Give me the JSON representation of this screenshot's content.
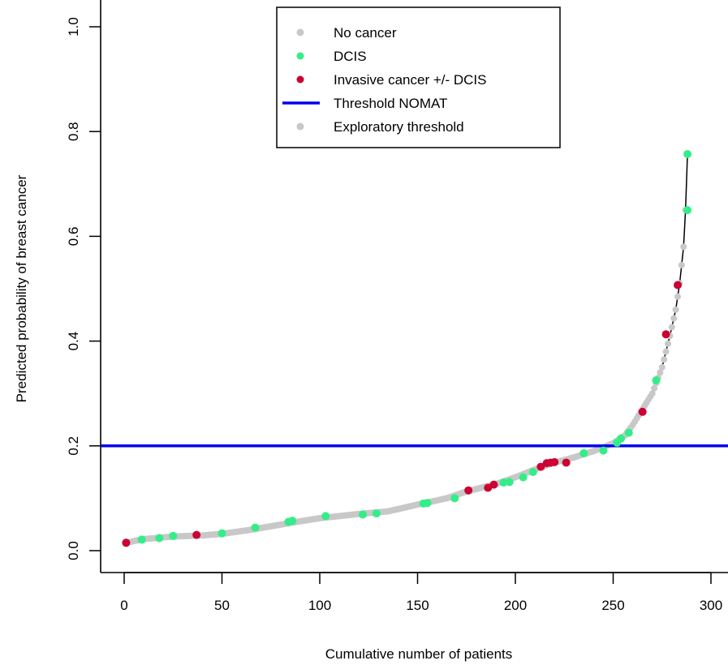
{
  "chart_data": {
    "type": "scatter",
    "xlabel": "Cumulative number of patients",
    "ylabel": "Predicted probability of breast cancer",
    "xlim": [
      -10,
      300
    ],
    "ylim": [
      0,
      1.0
    ],
    "x_ticks": [
      0,
      50,
      100,
      150,
      200,
      250,
      300
    ],
    "y_ticks": [
      0.0,
      0.2,
      0.4,
      0.6,
      0.8,
      1.0
    ],
    "x_tick_labels": [
      "0",
      "50",
      "100",
      "150",
      "200",
      "250",
      "300"
    ],
    "y_tick_labels": [
      "0.0",
      "0.2",
      "0.4",
      "0.6",
      "0.8",
      "1.0"
    ],
    "threshold_nomat": 0.2,
    "colors": {
      "no_cancer": "#c8c8c8",
      "dcis": "#33ee88",
      "invasive": "#cc0033",
      "threshold": "#0000ee",
      "curve": "#000000",
      "exploratory": "#c8c8c8"
    },
    "legend": {
      "position": "top-center",
      "entries": [
        {
          "label": "No cancer",
          "symbol": "point",
          "color": "#c8c8c8"
        },
        {
          "label": "DCIS",
          "symbol": "point",
          "color": "#33ee88"
        },
        {
          "label": "Invasive cancer +/- DCIS",
          "symbol": "point",
          "color": "#cc0033"
        },
        {
          "label": "Threshold NOMAT",
          "symbol": "line",
          "color": "#0000ee"
        },
        {
          "label": "Exploratory threshold",
          "symbol": "point",
          "color": "#c8c8c8"
        }
      ]
    },
    "curve_knots": [
      [
        1,
        0.015
      ],
      [
        10,
        0.022
      ],
      [
        25,
        0.027
      ],
      [
        40,
        0.029
      ],
      [
        50,
        0.032
      ],
      [
        65,
        0.04
      ],
      [
        85,
        0.053
      ],
      [
        100,
        0.062
      ],
      [
        120,
        0.07
      ],
      [
        135,
        0.075
      ],
      [
        150,
        0.088
      ],
      [
        165,
        0.1
      ],
      [
        175,
        0.113
      ],
      [
        190,
        0.127
      ],
      [
        200,
        0.14
      ],
      [
        210,
        0.155
      ],
      [
        220,
        0.168
      ],
      [
        230,
        0.178
      ],
      [
        240,
        0.19
      ],
      [
        250,
        0.205
      ],
      [
        256,
        0.22
      ],
      [
        260,
        0.24
      ],
      [
        265,
        0.27
      ],
      [
        270,
        0.3
      ],
      [
        275,
        0.35
      ],
      [
        279,
        0.41
      ],
      [
        282,
        0.46
      ],
      [
        284,
        0.51
      ],
      [
        286,
        0.58
      ],
      [
        287,
        0.65
      ],
      [
        288,
        0.757
      ]
    ],
    "dcis_points": [
      [
        1,
        0.015
      ],
      [
        9,
        0.021
      ],
      [
        18,
        0.024
      ],
      [
        25,
        0.028
      ],
      [
        50,
        0.033
      ],
      [
        67,
        0.044
      ],
      [
        84,
        0.055
      ],
      [
        86,
        0.057
      ],
      [
        103,
        0.066
      ],
      [
        122,
        0.069
      ],
      [
        129,
        0.071
      ],
      [
        153,
        0.09
      ],
      [
        155,
        0.091
      ],
      [
        169,
        0.1
      ],
      [
        194,
        0.13
      ],
      [
        197,
        0.131
      ],
      [
        204,
        0.14
      ],
      [
        209,
        0.15
      ],
      [
        235,
        0.186
      ],
      [
        245,
        0.191
      ],
      [
        252,
        0.206
      ],
      [
        254,
        0.214
      ],
      [
        258,
        0.225
      ],
      [
        272,
        0.325
      ],
      [
        288,
        0.65
      ],
      [
        288,
        0.757
      ]
    ],
    "invasive_points": [
      [
        1,
        0.015
      ],
      [
        37,
        0.03
      ],
      [
        176,
        0.115
      ],
      [
        186,
        0.12
      ],
      [
        189,
        0.126
      ],
      [
        213,
        0.16
      ],
      [
        216,
        0.167
      ],
      [
        218,
        0.168
      ],
      [
        220,
        0.169
      ],
      [
        226,
        0.168
      ],
      [
        265,
        0.265
      ],
      [
        277,
        0.413
      ],
      [
        283,
        0.507
      ]
    ]
  }
}
